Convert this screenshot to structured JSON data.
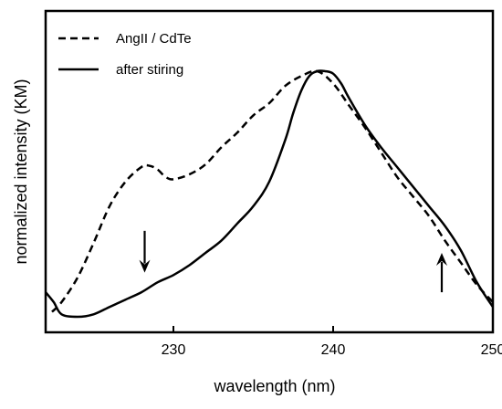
{
  "chart_data": {
    "type": "line",
    "xlabel": "wavelength (nm)",
    "ylabel": "normalized intensity (KM)",
    "xlim": [
      222,
      250
    ],
    "ylim": [
      0,
      1.06
    ],
    "xticks": [
      230,
      240,
      250
    ],
    "y_tick_labels_shown": false,
    "grid": false,
    "legend_position": "top-left",
    "series": [
      {
        "name": "AngII / CdTe",
        "style": "dashed",
        "color": "#000000",
        "x": [
          222.4,
          223,
          224,
          225,
          226,
          227,
          228,
          228.5,
          229,
          229.5,
          230,
          231,
          232,
          233,
          234,
          235,
          236,
          237,
          238,
          239,
          240,
          241,
          242,
          243,
          244,
          245,
          246,
          247,
          248,
          249,
          250
        ],
        "y": [
          0.02,
          0.06,
          0.16,
          0.3,
          0.45,
          0.55,
          0.61,
          0.615,
          0.6,
          0.57,
          0.56,
          0.58,
          0.62,
          0.69,
          0.75,
          0.82,
          0.87,
          0.94,
          0.98,
          1.0,
          0.95,
          0.86,
          0.77,
          0.67,
          0.57,
          0.49,
          0.41,
          0.31,
          0.22,
          0.13,
          0.06
        ]
      },
      {
        "name": "after stiring",
        "style": "solid",
        "color": "#000000",
        "x": [
          222,
          222.5,
          223,
          224,
          225,
          226,
          227,
          228,
          229,
          230,
          231,
          232,
          233,
          234,
          235,
          236,
          237,
          237.5,
          238,
          238.5,
          239,
          239.5,
          240,
          240.5,
          241,
          242,
          243,
          244,
          245,
          246,
          247,
          248,
          249,
          250
        ],
        "y": [
          0.1,
          0.06,
          0.01,
          0.0,
          0.01,
          0.04,
          0.07,
          0.1,
          0.14,
          0.17,
          0.21,
          0.26,
          0.31,
          0.38,
          0.45,
          0.55,
          0.72,
          0.83,
          0.92,
          0.98,
          1.0,
          1.0,
          0.99,
          0.95,
          0.89,
          0.78,
          0.69,
          0.61,
          0.53,
          0.45,
          0.37,
          0.27,
          0.14,
          0.04
        ]
      }
    ],
    "annotations": [
      {
        "type": "arrow",
        "direction": "down",
        "x": 228.2,
        "y_from": 0.35,
        "y_to": 0.18
      },
      {
        "type": "arrow",
        "direction": "up",
        "x": 246.8,
        "y_from": 0.1,
        "y_to": 0.26
      }
    ]
  }
}
